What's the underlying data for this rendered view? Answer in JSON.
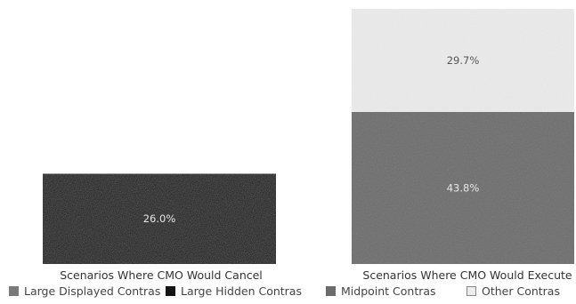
{
  "chart_data": {
    "type": "bar",
    "stacked": true,
    "categories": [
      "Scenarios Where CMO Would Cancel",
      "Scenarios Where CMO Would Execute"
    ],
    "series": [
      {
        "name": "Large Displayed Contras",
        "values": [
          null,
          null
        ],
        "color": "#7a7a7a"
      },
      {
        "name": "Large Hidden Contras",
        "values": [
          26.0,
          null
        ],
        "color": "#141414"
      },
      {
        "name": "Midpoint Contras",
        "values": [
          null,
          43.8
        ],
        "color": "#6b6b6b"
      },
      {
        "name": "Other Contras",
        "values": [
          null,
          29.7
        ],
        "color": "#ececec"
      }
    ],
    "data_labels": [
      [
        "",
        "26.0%",
        "",
        ""
      ],
      [
        "",
        "",
        "43.8%",
        "29.7%"
      ]
    ],
    "ylim": [
      0,
      73.5
    ],
    "grid": false,
    "legend_position": "bottom"
  }
}
